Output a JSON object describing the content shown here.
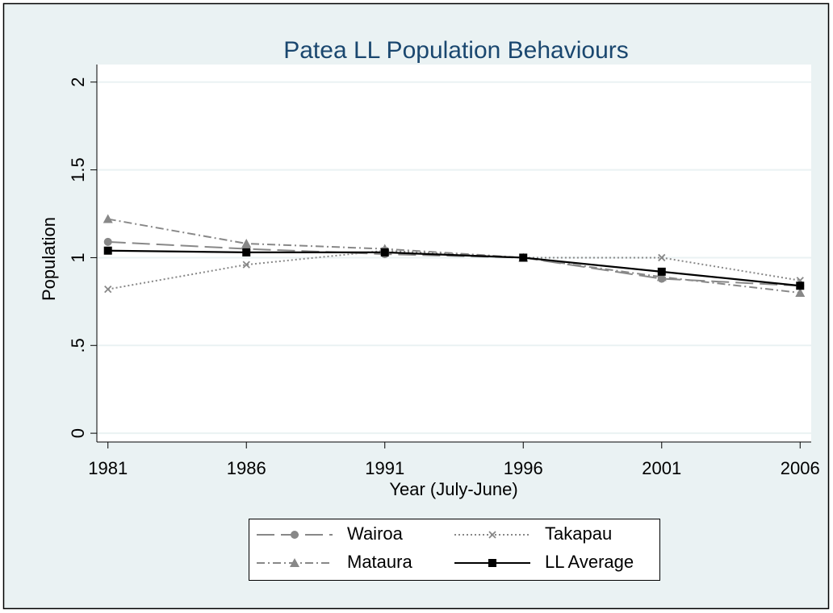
{
  "chart_data": {
    "type": "line",
    "title": "Patea LL Population Behaviours",
    "x_label": "Year (July-June)",
    "y_label": "Population",
    "x": [
      1981,
      1986,
      1991,
      1996,
      2001,
      2006
    ],
    "xlim": [
      1980.6,
      2006.4
    ],
    "xticks": [
      1981,
      1986,
      1991,
      1996,
      2001,
      2006
    ],
    "ylim": [
      -0.05,
      2.1
    ],
    "yticks": [
      0,
      {
        "value": 0.5,
        "label": ".5"
      },
      1,
      1.5,
      2
    ],
    "grid": true,
    "series": [
      {
        "name": "Wairoa",
        "color": "#888888",
        "line_style": "longdash",
        "marker": "circle",
        "values": [
          1.09,
          1.05,
          1.02,
          1.0,
          0.88,
          0.84
        ]
      },
      {
        "name": "Takapau",
        "color": "#888888",
        "line_style": "dot",
        "marker": "x",
        "values": [
          0.82,
          0.96,
          1.04,
          1.0,
          1.0,
          0.87
        ]
      },
      {
        "name": "Mataura",
        "color": "#888888",
        "line_style": "dashdot",
        "marker": "triangle",
        "values": [
          1.22,
          1.08,
          1.05,
          1.0,
          0.89,
          0.8
        ]
      },
      {
        "name": "LL Average",
        "color": "#000000",
        "line_style": "solid",
        "marker": "square",
        "values": [
          1.04,
          1.03,
          1.03,
          1.0,
          0.92,
          0.84
        ]
      }
    ]
  }
}
